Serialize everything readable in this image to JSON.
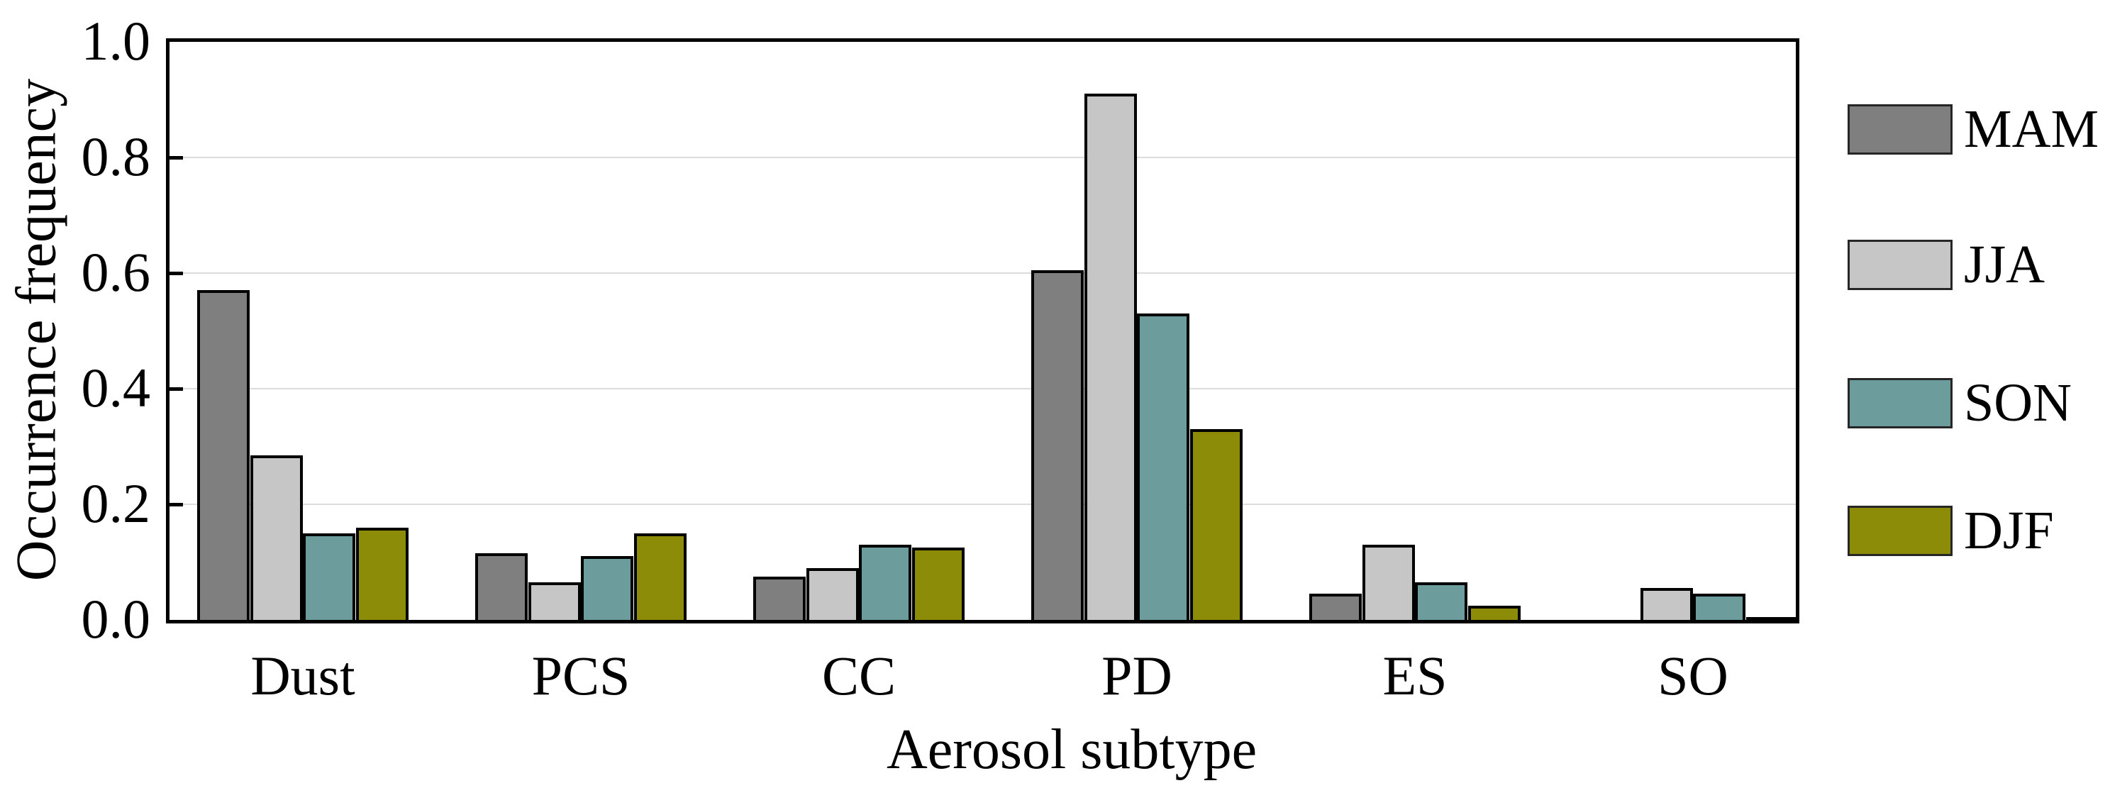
{
  "chart_data": {
    "type": "bar",
    "title": "",
    "xlabel": "Aerosol subtype",
    "ylabel": "Occurrence frequency",
    "categories": [
      "Dust",
      "PCS",
      "CC",
      "PD",
      "ES",
      "SO"
    ],
    "series": [
      {
        "name": "MAM",
        "color": "#7f7f7f",
        "values": [
          0.57,
          0.115,
          0.075,
          0.605,
          0.045,
          0.0
        ]
      },
      {
        "name": "JJA",
        "color": "#c6c6c6",
        "values": [
          0.285,
          0.065,
          0.09,
          0.91,
          0.13,
          0.055
        ]
      },
      {
        "name": "SON",
        "color": "#6d9c9d",
        "values": [
          0.15,
          0.11,
          0.13,
          0.53,
          0.065,
          0.045
        ]
      },
      {
        "name": "DJF",
        "color": "#8c8c08",
        "values": [
          0.16,
          0.15,
          0.125,
          0.33,
          0.025,
          0.005
        ]
      }
    ],
    "ylim": [
      0.0,
      1.0
    ],
    "yticks": [
      {
        "value": 0.0,
        "label": "0.0"
      },
      {
        "value": 0.2,
        "label": "0.2"
      },
      {
        "value": 0.4,
        "label": "0.4"
      },
      {
        "value": 0.6,
        "label": "0.6"
      },
      {
        "value": 0.8,
        "label": "0.8"
      },
      {
        "value": 1.0,
        "label": "1.0"
      }
    ],
    "grid": true,
    "legend_position": "right"
  },
  "colors": {
    "axis": "#000000",
    "grid": "#dcdcdc",
    "background": "#ffffff",
    "bar_border": "#000000"
  }
}
